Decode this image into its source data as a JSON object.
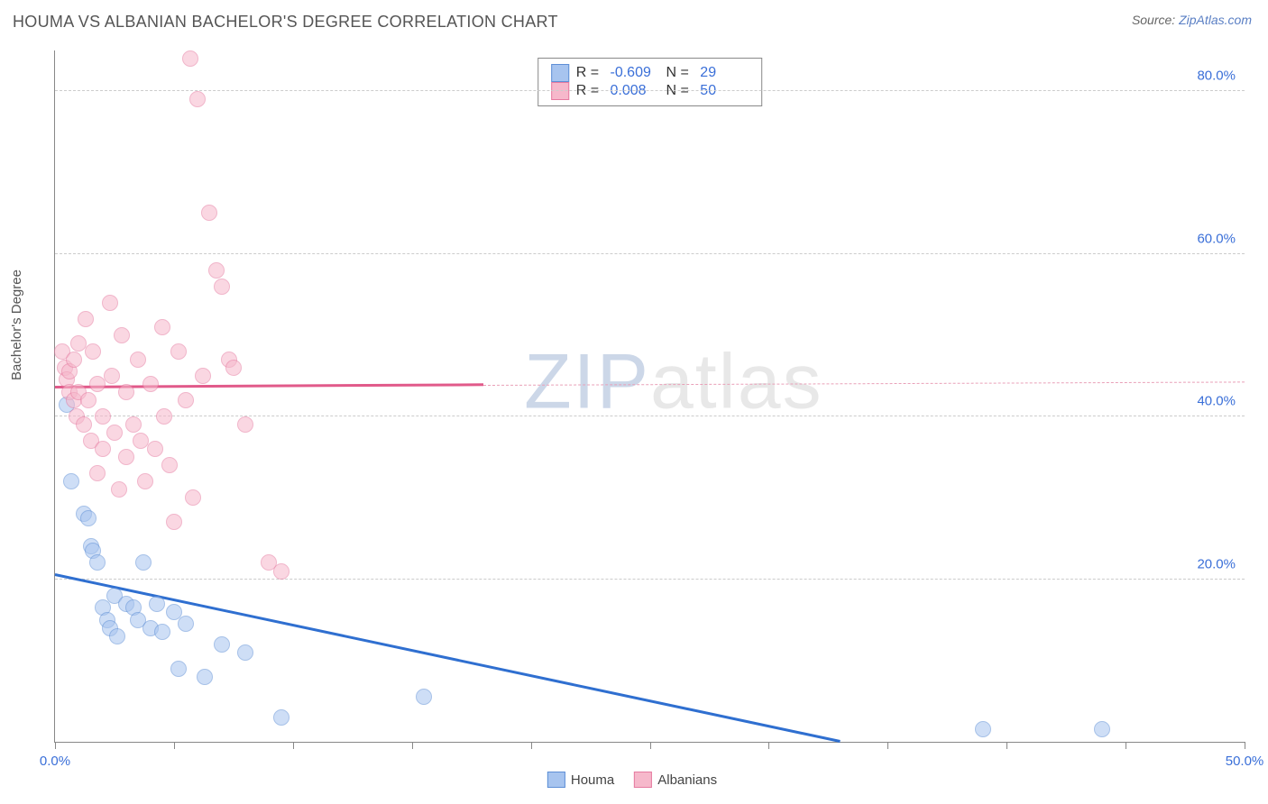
{
  "title": "HOUMA VS ALBANIAN BACHELOR'S DEGREE CORRELATION CHART",
  "source_label": "Source: ",
  "source_link": "ZipAtlas.com",
  "ylabel": "Bachelor's Degree",
  "watermark_z": "ZIP",
  "watermark_rest": "atlas",
  "chart": {
    "type": "scatter",
    "xlim": [
      0,
      50
    ],
    "ylim": [
      0,
      85
    ],
    "xticks": [
      0,
      5,
      10,
      15,
      20,
      25,
      30,
      35,
      40,
      45,
      50
    ],
    "xtick_labels": {
      "0": "0.0%",
      "50": "50.0%"
    },
    "yticks": [
      20,
      40,
      60,
      80
    ],
    "ytick_labels": {
      "20": "20.0%",
      "40": "40.0%",
      "60": "60.0%",
      "80": "80.0%"
    },
    "grid_color": "#cccccc",
    "background_color": "#ffffff",
    "axis_color": "#888888",
    "tick_label_color": "#3a6fd8",
    "marker_radius": 9,
    "marker_opacity": 0.55,
    "series": [
      {
        "name": "Houma",
        "color_fill": "#a7c4ef",
        "color_stroke": "#5e8fd6",
        "R": "-0.609",
        "N": "29",
        "trend": {
          "x1": 0,
          "y1": 20.5,
          "x2": 33,
          "y2": 0,
          "color": "#2f6fd0"
        },
        "points": [
          [
            0.5,
            41.5
          ],
          [
            0.7,
            32
          ],
          [
            1.2,
            28
          ],
          [
            1.4,
            27.5
          ],
          [
            1.5,
            24
          ],
          [
            1.6,
            23.5
          ],
          [
            1.8,
            22
          ],
          [
            2.0,
            16.5
          ],
          [
            2.2,
            15
          ],
          [
            2.3,
            14
          ],
          [
            2.5,
            18
          ],
          [
            2.6,
            13
          ],
          [
            3.0,
            17
          ],
          [
            3.3,
            16.5
          ],
          [
            3.5,
            15
          ],
          [
            3.7,
            22
          ],
          [
            4.0,
            14
          ],
          [
            4.3,
            17
          ],
          [
            4.5,
            13.5
          ],
          [
            5.0,
            16
          ],
          [
            5.2,
            9
          ],
          [
            5.5,
            14.5
          ],
          [
            6.3,
            8
          ],
          [
            7.0,
            12
          ],
          [
            8.0,
            11
          ],
          [
            9.5,
            3
          ],
          [
            15.5,
            5.5
          ],
          [
            39,
            1.5
          ],
          [
            44,
            1.5
          ]
        ]
      },
      {
        "name": "Albanians",
        "color_fill": "#f6b8cb",
        "color_stroke": "#e67aa0",
        "R": "0.008",
        "N": "50",
        "trend_solid": {
          "x1": 0,
          "y1": 43.5,
          "x2": 18,
          "y2": 43.8,
          "color": "#e15a8a"
        },
        "trend_dash": {
          "x1": 18,
          "y1": 43.8,
          "x2": 50,
          "y2": 44.2,
          "color": "#e9a0b8"
        },
        "points": [
          [
            0.3,
            48
          ],
          [
            0.4,
            46
          ],
          [
            0.5,
            44.5
          ],
          [
            0.6,
            43
          ],
          [
            0.6,
            45.5
          ],
          [
            0.8,
            47
          ],
          [
            0.8,
            42
          ],
          [
            0.9,
            40
          ],
          [
            1.0,
            49
          ],
          [
            1.0,
            43
          ],
          [
            1.2,
            39
          ],
          [
            1.3,
            52
          ],
          [
            1.4,
            42
          ],
          [
            1.5,
            37
          ],
          [
            1.6,
            48
          ],
          [
            1.8,
            44
          ],
          [
            1.8,
            33
          ],
          [
            2.0,
            40
          ],
          [
            2.0,
            36
          ],
          [
            2.3,
            54
          ],
          [
            2.4,
            45
          ],
          [
            2.5,
            38
          ],
          [
            2.7,
            31
          ],
          [
            2.8,
            50
          ],
          [
            3.0,
            43
          ],
          [
            3.0,
            35
          ],
          [
            3.3,
            39
          ],
          [
            3.5,
            47
          ],
          [
            3.6,
            37
          ],
          [
            3.8,
            32
          ],
          [
            4.0,
            44
          ],
          [
            4.2,
            36
          ],
          [
            4.5,
            51
          ],
          [
            4.6,
            40
          ],
          [
            4.8,
            34
          ],
          [
            5.0,
            27
          ],
          [
            5.2,
            48
          ],
          [
            5.5,
            42
          ],
          [
            5.7,
            84
          ],
          [
            5.8,
            30
          ],
          [
            6.0,
            79
          ],
          [
            6.2,
            45
          ],
          [
            6.5,
            65
          ],
          [
            6.8,
            58
          ],
          [
            7.0,
            56
          ],
          [
            7.3,
            47
          ],
          [
            7.5,
            46
          ],
          [
            8.0,
            39
          ],
          [
            9.0,
            22
          ],
          [
            9.5,
            21
          ]
        ]
      }
    ]
  },
  "bottom_legend": [
    "Houma",
    "Albanians"
  ]
}
